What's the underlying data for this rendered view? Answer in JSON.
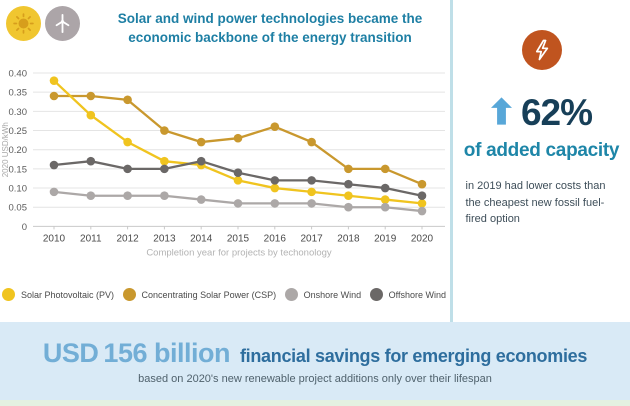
{
  "header": {
    "title": "Solar and wind power technologies became the economic backbone of the energy transition"
  },
  "chart_data": {
    "type": "line",
    "x": [
      "2010",
      "2011",
      "2012",
      "2013",
      "2014",
      "2015",
      "2016",
      "2017",
      "2018",
      "2019",
      "2020"
    ],
    "series": [
      {
        "name": "Solar Photovoltaic (PV)",
        "color": "#F0C41F",
        "values": [
          0.38,
          0.29,
          0.22,
          0.17,
          0.16,
          0.12,
          0.1,
          0.09,
          0.08,
          0.07,
          0.06
        ]
      },
      {
        "name": "Concentrating Solar Power (CSP)",
        "color": "#C9982E",
        "values": [
          0.34,
          0.34,
          0.33,
          0.25,
          0.22,
          0.23,
          0.26,
          0.22,
          0.15,
          0.15,
          0.11
        ]
      },
      {
        "name": "Onshore Wind",
        "color": "#ACA8A7",
        "values": [
          0.09,
          0.08,
          0.08,
          0.08,
          0.07,
          0.06,
          0.06,
          0.06,
          0.05,
          0.05,
          0.04
        ]
      },
      {
        "name": "Offshore Wind",
        "color": "#6B6867",
        "values": [
          0.16,
          0.17,
          0.15,
          0.15,
          0.17,
          0.14,
          0.12,
          0.12,
          0.11,
          0.1,
          0.08
        ]
      }
    ],
    "xlabel": "Completion year for projects by techonology",
    "ylabel": "2020 USD/kWh",
    "ylim": [
      0,
      0.4
    ],
    "ytick_step": 0.05,
    "yticks": [
      "0",
      "0.05",
      "0.10",
      "0.15",
      "0.20",
      "0.25",
      "0.30",
      "0.35",
      "0.40"
    ],
    "grid": true,
    "legend_position": "bottom"
  },
  "right_panel": {
    "stat_value": "62%",
    "stat_headline": "of added capacity",
    "stat_body": "in 2019 had lower costs than the cheapest new fossil fuel-fired option"
  },
  "bottom_banner": {
    "amount_prefix": "USD",
    "amount": "156 billion",
    "headline": "financial savings for emerging economies",
    "subtext": "based on 2020's new renewable project additions only over their lifespan"
  },
  "colors": {
    "title_teal": "#1E7FA4",
    "stat_navy": "#173F58",
    "stat_teal": "#1E86A8",
    "arrow_blue": "#58A7D8",
    "badge_orange": "#C0541F",
    "divider_teal": "#BFDFE8",
    "banner_bg": "#D9EAF6",
    "banner_amount_blue": "#72AED6",
    "banner_headline_blue": "#2E6E9E",
    "sun_yellow": "#F0C630",
    "wind_gray": "#ACA5A8"
  }
}
